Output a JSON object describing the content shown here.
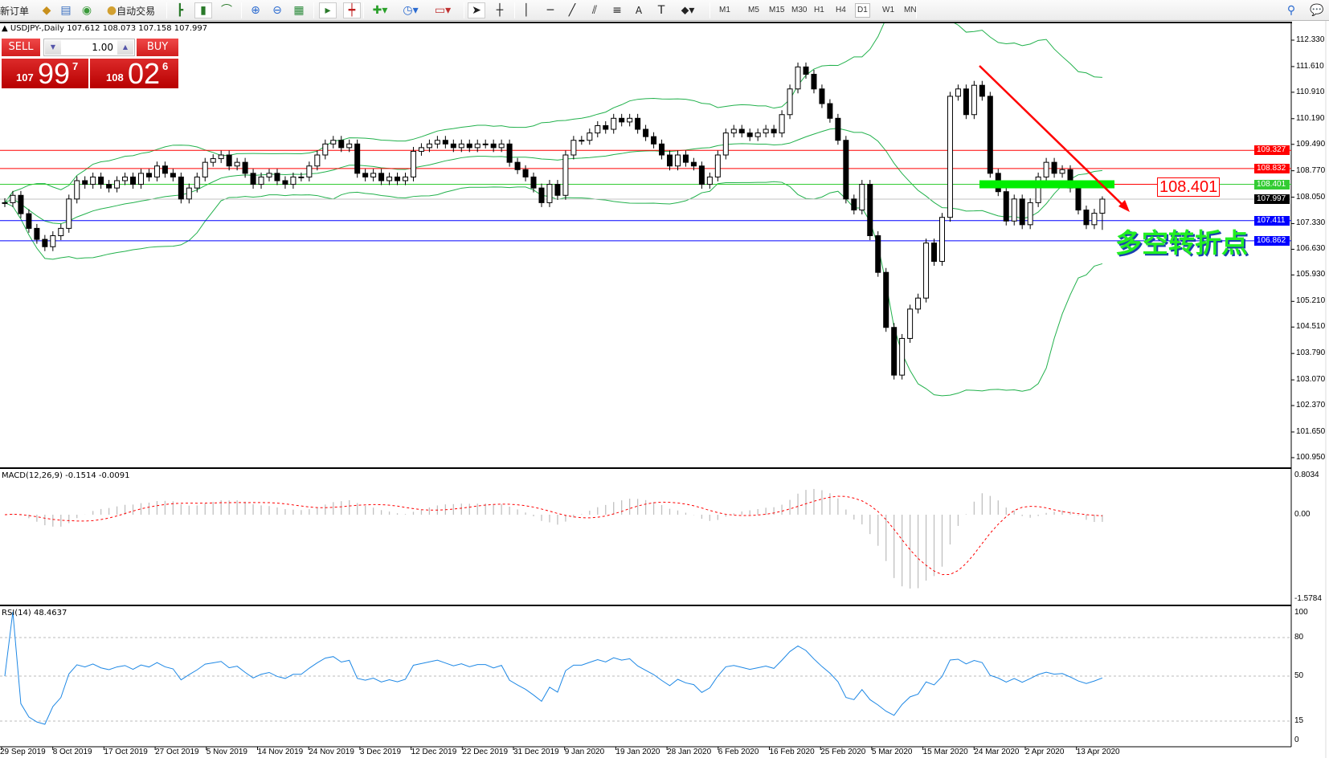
{
  "toolbar": {
    "new_order": "新订单",
    "auto_trading": "自动交易",
    "icons": [
      "market-watch-icon",
      "navigator-icon",
      "signals-icon",
      "bar-chart-icon",
      "candlestick-icon",
      "line-chart-icon",
      "zoom-in-icon",
      "zoom-out-icon",
      "tile-windows-icon",
      "autoscroll-icon",
      "chart-shift-icon",
      "indicators-icon",
      "periods-icon",
      "templates-icon",
      "cursor-icon",
      "crosshair-icon",
      "vertical-line-icon",
      "horizontal-line-icon",
      "trendline-icon",
      "equidistant-channel-icon",
      "fibonacci-icon",
      "text-icon",
      "text-label-icon",
      "arrows-icon",
      "search-icon",
      "chat-icon"
    ],
    "timeframes": [
      "M1",
      "M5",
      "M15",
      "M30",
      "H1",
      "H4",
      "D1",
      "W1",
      "MN"
    ],
    "active_timeframe": "D1"
  },
  "trade_panel": {
    "sell_label": "SELL",
    "buy_label": "BUY",
    "lot": "1.00",
    "sell_price": {
      "prefix": "107",
      "main": "99",
      "sup": "7"
    },
    "buy_price": {
      "prefix": "108",
      "main": "02",
      "sup": "6"
    }
  },
  "chart": {
    "symbol_header": "USDJPY-,Daily  107.612 108.073 107.158 107.997",
    "price_axis": [
      "112.330",
      "111.610",
      "110.910",
      "110.190",
      "109.490",
      "108.770",
      "108.050",
      "107.330",
      "106.630",
      "105.930",
      "105.210",
      "104.510",
      "103.790",
      "103.070",
      "102.370",
      "101.650",
      "100.950"
    ],
    "levels": [
      {
        "value": "109.327",
        "color": "#ff0000"
      },
      {
        "value": "108.832",
        "color": "#ff0000"
      },
      {
        "value": "108.401",
        "color": "#33cc33"
      },
      {
        "value": "107.997",
        "color": "#000000",
        "line_color": "#c0c0c0"
      },
      {
        "value": "107.411",
        "color": "#0000ff"
      },
      {
        "value": "106.862",
        "color": "#0000ff"
      }
    ],
    "annotation_label": "108.401",
    "annotation_text": "多空转折点",
    "colors": {
      "bollinger": "#22b14c",
      "trend_arrow": "#ff0000",
      "zone": "#00ee00",
      "bull": "#ffffff",
      "bear": "#000000"
    }
  },
  "macd": {
    "header": "MACD(12,26,9) -0.1514 -0.0091",
    "axis": [
      "0.8034",
      "0.00",
      "-1.5784"
    ],
    "colors": {
      "histogram": "#c0c0c0",
      "signal": "#ff0000"
    }
  },
  "rsi": {
    "header": "RSI(14) 48.4637",
    "axis": [
      "100",
      "80",
      "50",
      "15",
      "0"
    ],
    "color": "#1e88e5"
  },
  "dates": [
    "29 Sep 2019",
    "8 Oct 2019",
    "17 Oct 2019",
    "27 Oct 2019",
    "5 Nov 2019",
    "14 Nov 2019",
    "24 Nov 2019",
    "3 Dec 2019",
    "12 Dec 2019",
    "22 Dec 2019",
    "31 Dec 2019",
    "9 Jan 2020",
    "19 Jan 2020",
    "28 Jan 2020",
    "6 Feb 2020",
    "16 Feb 2020",
    "25 Feb 2020",
    "5 Mar 2020",
    "15 Mar 2020",
    "24 Mar 2020",
    "2 Apr 2020",
    "13 Apr 2020"
  ],
  "chart_data": {
    "type": "candlestick",
    "symbol": "USDJPY-",
    "timeframe": "Daily",
    "last_bar": {
      "open": 107.612,
      "high": 108.073,
      "low": 107.158,
      "close": 107.997
    },
    "closes": [
      107.9,
      108.1,
      107.6,
      107.2,
      106.9,
      106.7,
      107.0,
      107.2,
      108.0,
      108.5,
      108.4,
      108.6,
      108.4,
      108.3,
      108.5,
      108.6,
      108.4,
      108.7,
      108.6,
      108.9,
      108.7,
      108.6,
      108.0,
      108.3,
      108.6,
      109.0,
      109.1,
      109.2,
      108.9,
      109.0,
      108.7,
      108.4,
      108.6,
      108.7,
      108.5,
      108.4,
      108.6,
      108.6,
      108.9,
      109.2,
      109.5,
      109.6,
      109.4,
      109.5,
      108.7,
      108.6,
      108.7,
      108.5,
      108.6,
      108.5,
      108.6,
      109.3,
      109.4,
      109.5,
      109.6,
      109.5,
      109.4,
      109.5,
      109.4,
      109.5,
      109.5,
      109.4,
      109.5,
      109.0,
      108.8,
      108.6,
      108.3,
      107.9,
      108.4,
      108.1,
      109.2,
      109.6,
      109.6,
      109.8,
      110.0,
      109.9,
      110.2,
      110.1,
      110.2,
      109.9,
      109.7,
      109.5,
      109.2,
      108.9,
      109.2,
      109.0,
      108.9,
      108.4,
      108.6,
      109.2,
      109.8,
      109.9,
      109.8,
      109.7,
      109.8,
      109.9,
      109.8,
      110.3,
      111.0,
      111.6,
      111.4,
      111.0,
      110.6,
      110.2,
      109.6,
      108.0,
      107.7,
      108.4,
      107.0,
      106.0,
      104.5,
      103.2,
      104.2,
      105.0,
      105.3,
      106.8,
      106.3,
      107.5,
      110.8,
      111.0,
      110.3,
      111.1,
      110.8,
      108.7,
      108.2,
      107.4,
      108.0,
      107.3,
      107.9,
      108.6,
      109.0,
      108.7,
      108.8,
      108.3,
      107.7,
      107.3,
      107.612,
      107.997
    ],
    "indicators": [
      "Bollinger Bands(20,2)",
      "MACD(12,26,9)",
      "RSI(14)"
    ],
    "price_range": [
      100.95,
      112.33
    ]
  }
}
